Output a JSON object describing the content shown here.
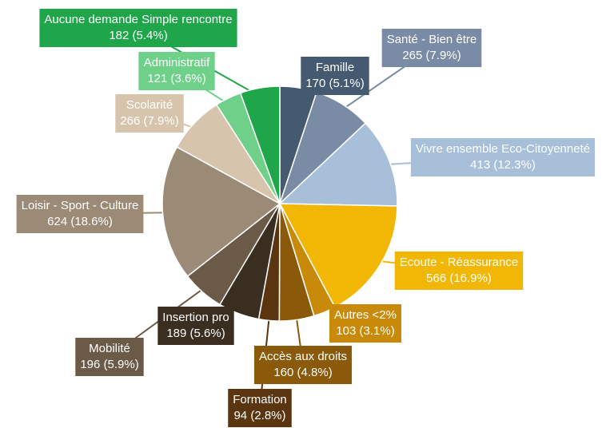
{
  "chart_data": {
    "type": "pie",
    "categories": [
      "Famille",
      "Santé - Bien être",
      "Vivre ensemble Eco-Citoyenneté",
      "Ecoute - Réassurance",
      "Autres <2%",
      "Accès aux droits",
      "Formation",
      "Insertion pro",
      "Mobilité",
      "Loisir - Sport - Culture",
      "Scolarité",
      "Administratif",
      "Aucune demande Simple rencontre"
    ],
    "values": [
      170,
      265,
      413,
      566,
      103,
      160,
      94,
      189,
      196,
      624,
      266,
      121,
      182
    ],
    "value_labels": [
      "170 (5.1%)",
      "265 (7.9%)",
      "413 (12.3%)",
      "566 (16.9%)",
      "103 (3.1%)",
      "160 (4.8%)",
      "94 (2.8%)",
      "189 (5.6%)",
      "196 (5.9%)",
      "624 (18.6%)",
      "266 (7.9%)",
      "121 (3.6%)",
      "182 (5.4%)"
    ],
    "colors": [
      "#455a70",
      "#7a8ca5",
      "#a8bfda",
      "#f2b705",
      "#c98a0a",
      "#8a5a0a",
      "#5a3510",
      "#3a2e20",
      "#6b5a48",
      "#9b8a75",
      "#d6c4ad",
      "#6fd08a",
      "#1fa54a"
    ]
  }
}
